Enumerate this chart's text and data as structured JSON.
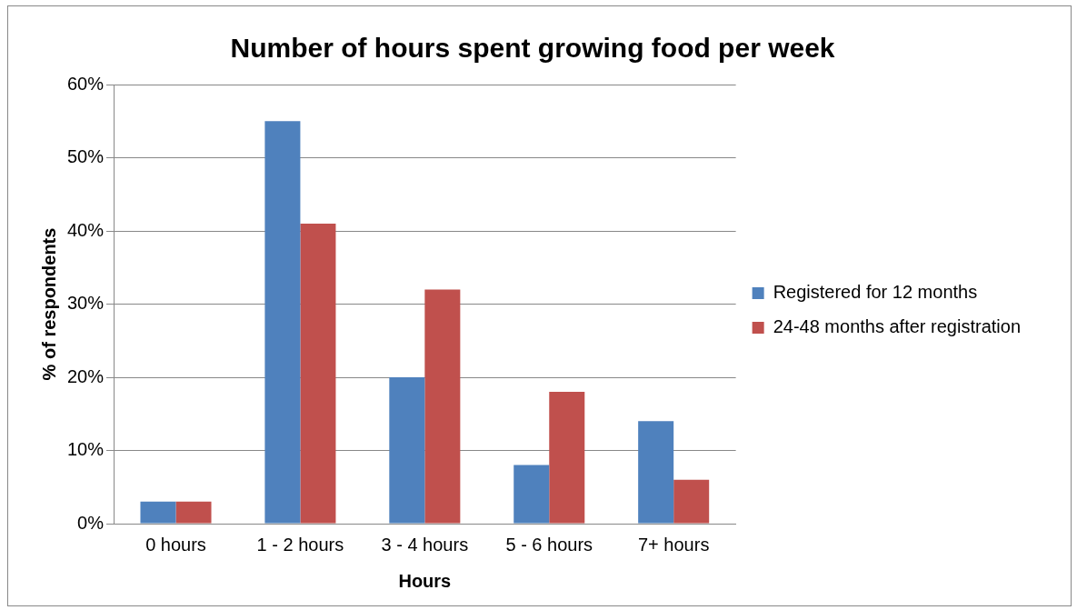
{
  "chart_data": {
    "type": "bar",
    "title": "Number of hours spent growing food per week",
    "xlabel": "Hours",
    "ylabel": "% of respondents",
    "categories": [
      "0 hours",
      "1 - 2 hours",
      "3 - 4 hours",
      "5 - 6 hours",
      "7+ hours"
    ],
    "series": [
      {
        "name": "Registered for 12 months",
        "color": "#4f81bd",
        "values": [
          3,
          55,
          20,
          8,
          14
        ]
      },
      {
        "name": "24-48 months after registration",
        "color": "#c0504d",
        "values": [
          3,
          41,
          32,
          18,
          6
        ]
      }
    ],
    "ylim": [
      0,
      60
    ],
    "yticks": [
      {
        "value": 0,
        "label": "0%"
      },
      {
        "value": 10,
        "label": "10%"
      },
      {
        "value": 20,
        "label": "20%"
      },
      {
        "value": 30,
        "label": "30%"
      },
      {
        "value": 40,
        "label": "40%"
      },
      {
        "value": 50,
        "label": "50%"
      },
      {
        "value": 60,
        "label": "60%"
      }
    ],
    "grid": "y",
    "legend": "right"
  }
}
